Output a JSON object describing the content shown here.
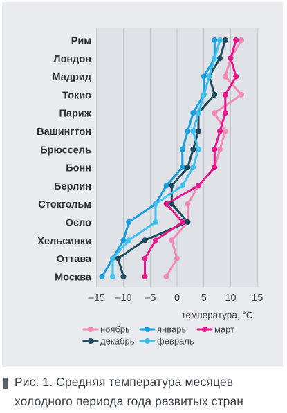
{
  "chart_data": {
    "type": "line",
    "orientation": "horizontal",
    "categories": [
      "Рим",
      "Лондон",
      "Мадрид",
      "Токио",
      "Париж",
      "Вашингтон",
      "Брюссель",
      "Бонн",
      "Берлин",
      "Стокгольм",
      "Осло",
      "Хельсинки",
      "Оттава",
      "Москва"
    ],
    "xlabel": "температура, °С",
    "xlim": [
      -15,
      15
    ],
    "xticks": [
      "–15",
      "–10",
      "–5",
      "0",
      "5",
      "10",
      "15"
    ],
    "grid": "vertical",
    "legend_position": "bottom",
    "series": [
      {
        "name": "ноябрь",
        "color": "#f08ab4",
        "values": [
          12,
          10,
          9,
          12,
          7,
          9,
          8,
          7,
          4,
          2,
          2,
          -1,
          0,
          -2
        ]
      },
      {
        "name": "декабрь",
        "color": "#1e4a5e",
        "values": [
          9,
          8,
          6,
          7,
          4,
          4,
          3,
          2,
          -1,
          -1,
          2,
          -6,
          -11,
          -10
        ]
      },
      {
        "name": "январь",
        "color": "#1a9ddb",
        "values": [
          7,
          7,
          5,
          5,
          3,
          2,
          1,
          1,
          -2,
          -4,
          -9,
          -10,
          -12,
          -14
        ]
      },
      {
        "name": "февраль",
        "color": "#3fc0ee",
        "values": [
          8,
          7,
          6,
          5,
          4,
          3,
          4,
          3,
          1,
          -4,
          -4,
          -9,
          -12,
          -12
        ]
      },
      {
        "name": "март",
        "color": "#e6168c",
        "values": [
          11,
          10,
          11,
          9,
          9,
          8,
          7,
          7,
          4,
          -2,
          1,
          -4,
          -6,
          -6
        ]
      }
    ]
  },
  "caption": {
    "line1": "Рис. 1. Средняя температура месяцев",
    "line2": "холодного периода года развитых стран"
  }
}
